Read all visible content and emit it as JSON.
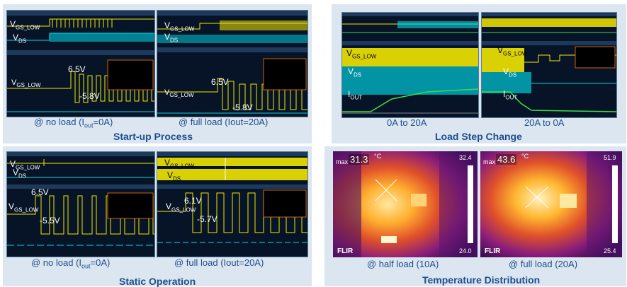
{
  "startup": {
    "title": "Start-up Process",
    "left_caption": "@ no load (I",
    "left_caption_sub": "out",
    "left_caption_end": "=0A)",
    "right_caption": "@ full load (Iout=20A)",
    "left_labels": {
      "vgs": "V",
      "vgs_sub": "GS_LOW",
      "vds": "V",
      "vds_sub": "DS",
      "vgs2": "V",
      "vgs2_sub": "GS_LOW",
      "v1": "6.5V",
      "v2": "-5.8V"
    },
    "right_labels": {
      "vgs": "V",
      "vgs_sub": "GS_LOW",
      "vds": "V",
      "vds_sub": "DS",
      "vgs2": "V",
      "vgs2_sub": "GS_LOW",
      "v1": "6.5V",
      "v2": "-5.8V"
    }
  },
  "loadstep": {
    "title": "Load Step Change",
    "left_caption": "0A to 20A",
    "right_caption": "20A to 0A",
    "left_labels": {
      "vgs": "V",
      "vgs_sub": "GS_LOW",
      "vds": "V",
      "vds_sub": "DS",
      "iout": "I",
      "iout_sub": "OUT"
    },
    "right_labels": {
      "vgs": "V",
      "vgs_sub": "GS_LOW",
      "vds": "V",
      "vds_sub": "DS",
      "iout": "I",
      "iout_sub": "OUT"
    }
  },
  "static": {
    "title": "Static Operation",
    "left_caption": "@ no load (I",
    "left_caption_sub": "out",
    "left_caption_end": "=0A)",
    "right_caption": "@ full load (Iout=20A)",
    "left_labels": {
      "vgs": "V",
      "vgs_sub": "GS_LOW",
      "vds": "V",
      "vds_sub": "DS",
      "vgs2": "V",
      "vgs2_sub": "GS_LOW",
      "v1": "6.5V",
      "v2": "-5.5V"
    },
    "right_labels": {
      "vgs": "V",
      "vgs_sub": "GS_LOW",
      "vds": "V",
      "vds_sub": "DS",
      "vgs2": "V",
      "vgs2_sub": "GS_LOW",
      "v1": "6.1V",
      "v2": "-5.7V"
    }
  },
  "thermal": {
    "title": "Temperature Distribution",
    "left_caption": "@ half load (10A)",
    "right_caption": "@ full load (20A)",
    "left": {
      "max_label": "max",
      "max_value": "31.3",
      "unit": "°C",
      "scale_top": "32.4",
      "scale_bottom": "24.0",
      "brand": "FLIR"
    },
    "right": {
      "max_label": "max",
      "max_value": "43.6",
      "unit": "°C",
      "scale_top": "51.9",
      "scale_bottom": "25.4",
      "brand": "FLIR"
    }
  },
  "colors": {
    "panel_bg": "#dbe6f1",
    "title": "#1f4e8c",
    "scope_bg": "#071428",
    "yellow": "#f2e600",
    "cyan": "#00d8e8",
    "green": "#3ddc4a"
  }
}
